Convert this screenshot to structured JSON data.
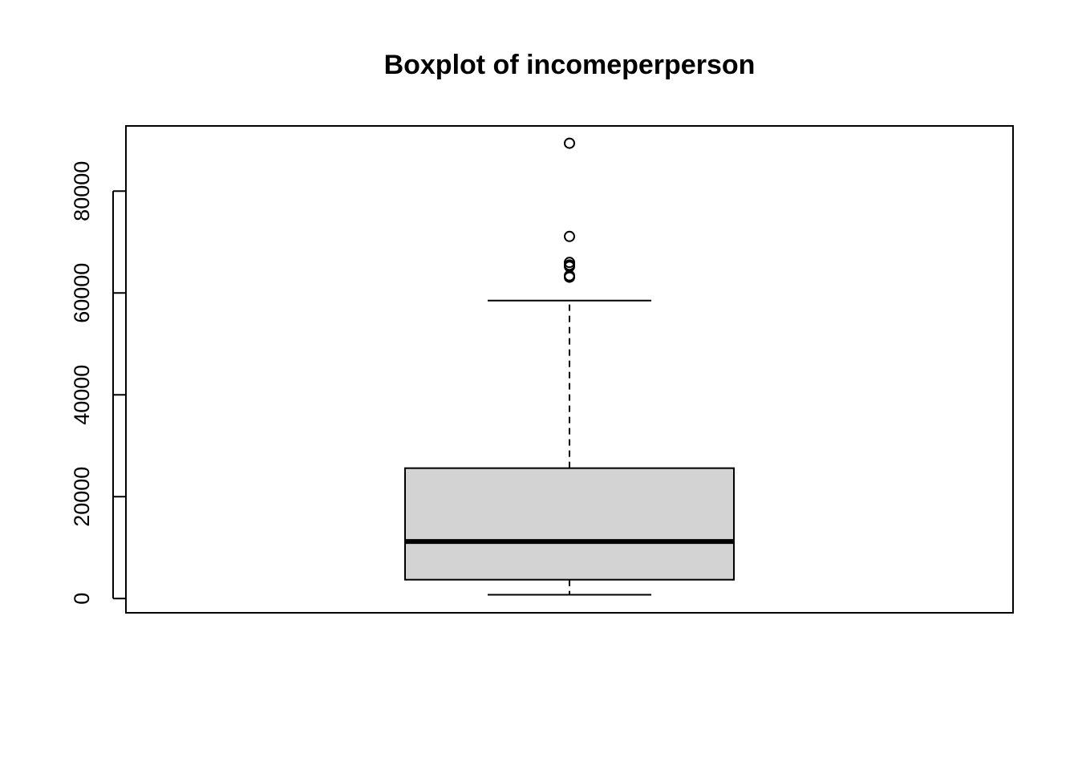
{
  "chart_data": {
    "type": "boxplot",
    "title": "Boxplot of incomeperperson",
    "xlabel": "",
    "ylabel": "",
    "ylim": [
      -2800,
      92800
    ],
    "yticks": [
      0,
      20000,
      40000,
      60000,
      80000
    ],
    "ytick_labels": [
      "0",
      "20000",
      "40000",
      "60000",
      "80000"
    ],
    "box": {
      "whisker_low": 750,
      "q1": 3700,
      "median": 11200,
      "q3": 25600,
      "whisker_high": 58500
    },
    "outliers": [
      89400,
      71100,
      66000,
      65500,
      65200,
      63400,
      63100
    ],
    "box_fill": "#d3d3d3",
    "line_color": "#000000"
  }
}
